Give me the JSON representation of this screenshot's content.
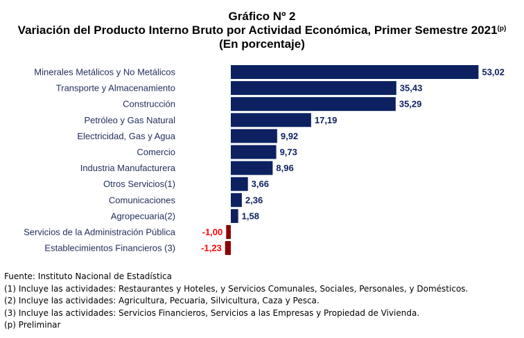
{
  "title": {
    "line1": "Gráfico Nº 2",
    "line2": "Variación del Producto Interno Bruto por Actividad Económica, Primer Semestre 2021",
    "line2_sup": "(p)",
    "line3": "(En porcentaje)"
  },
  "chart_data": {
    "type": "bar",
    "orientation": "horizontal",
    "categories": [
      "Minerales Metálicos y No Metálicos",
      "Transporte y Almacenamiento",
      "Construcción",
      "Petróleo y Gas Natural",
      "Electricidad, Gas y Agua",
      "Comercio",
      "Industria Manufacturera",
      "Otros Servicios(1)",
      "Comunicaciones",
      "Agropecuaria(2)",
      "Servicios de la Administración Pública",
      "Establecimientos Financieros (3)"
    ],
    "values": [
      53.02,
      35.43,
      35.29,
      17.19,
      9.92,
      9.73,
      8.96,
      3.66,
      2.36,
      1.58,
      -1.0,
      -1.23
    ],
    "value_labels": [
      "53,02",
      "35,43",
      "35,29",
      "17,19",
      "9,92",
      "9,73",
      "8,96",
      "3,66",
      "2,36",
      "1,58",
      "-1,00",
      "-1,23"
    ],
    "xlim": [
      -1.23,
      53.02
    ],
    "colors": {
      "positive": "#0d2160",
      "negative": "#8b0000",
      "positive_label": "#0d2160",
      "negative_label": "#ff0000",
      "category_label": "#1f2d5c"
    },
    "grid": false,
    "legend": "none"
  },
  "footer": {
    "source": "Fuente: Instituto Nacional de Estadística",
    "note1": "(1) Incluye las actividades: Restaurantes y Hoteles, y Servicios Comunales, Sociales, Personales, y Domésticos.",
    "note2": "(2) Incluye las actividades: Agricultura, Pecuaria, Silvicultura, Caza y Pesca.",
    "note3": "(3) Incluye las actividades: Servicios Financieros, Servicios a las Empresas y Propiedad de Vivienda.",
    "note4": "(p) Preliminar"
  }
}
